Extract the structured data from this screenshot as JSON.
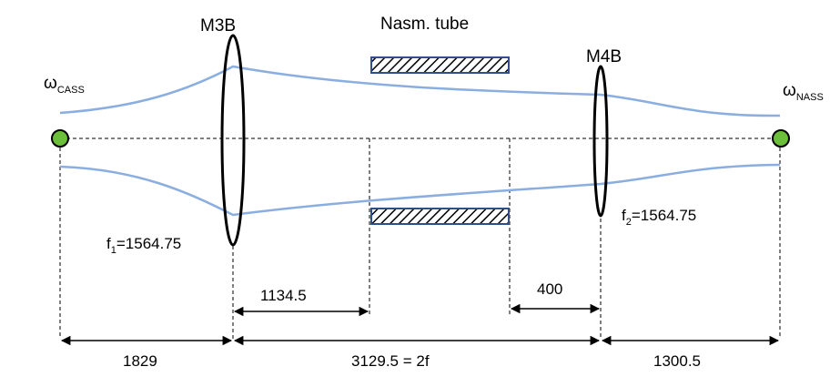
{
  "labels": {
    "mirror_left": "M3B",
    "mirror_right": "M4B",
    "tube": "Nasm. tube",
    "omega_left_symbol": "ω",
    "omega_left_sub": "CASS",
    "omega_right_symbol": "ω",
    "omega_right_sub": "NASS",
    "f1_prefix": "f",
    "f1_sub": "1",
    "f1_value": "=1564.75",
    "f2_prefix": "f",
    "f2_sub": "2",
    "f2_value": "=1564.75"
  },
  "dimensions": {
    "d_1829": "1829",
    "d_3129": "3129.5 = 2f",
    "d_1300": "1300.5",
    "d_1134": "1134.5",
    "d_400": "400"
  },
  "colors": {
    "beam": "#8aaee0",
    "focus_fill": "#6bbf3a",
    "tube_border": "#2e4e8c",
    "line": "#000000"
  }
}
